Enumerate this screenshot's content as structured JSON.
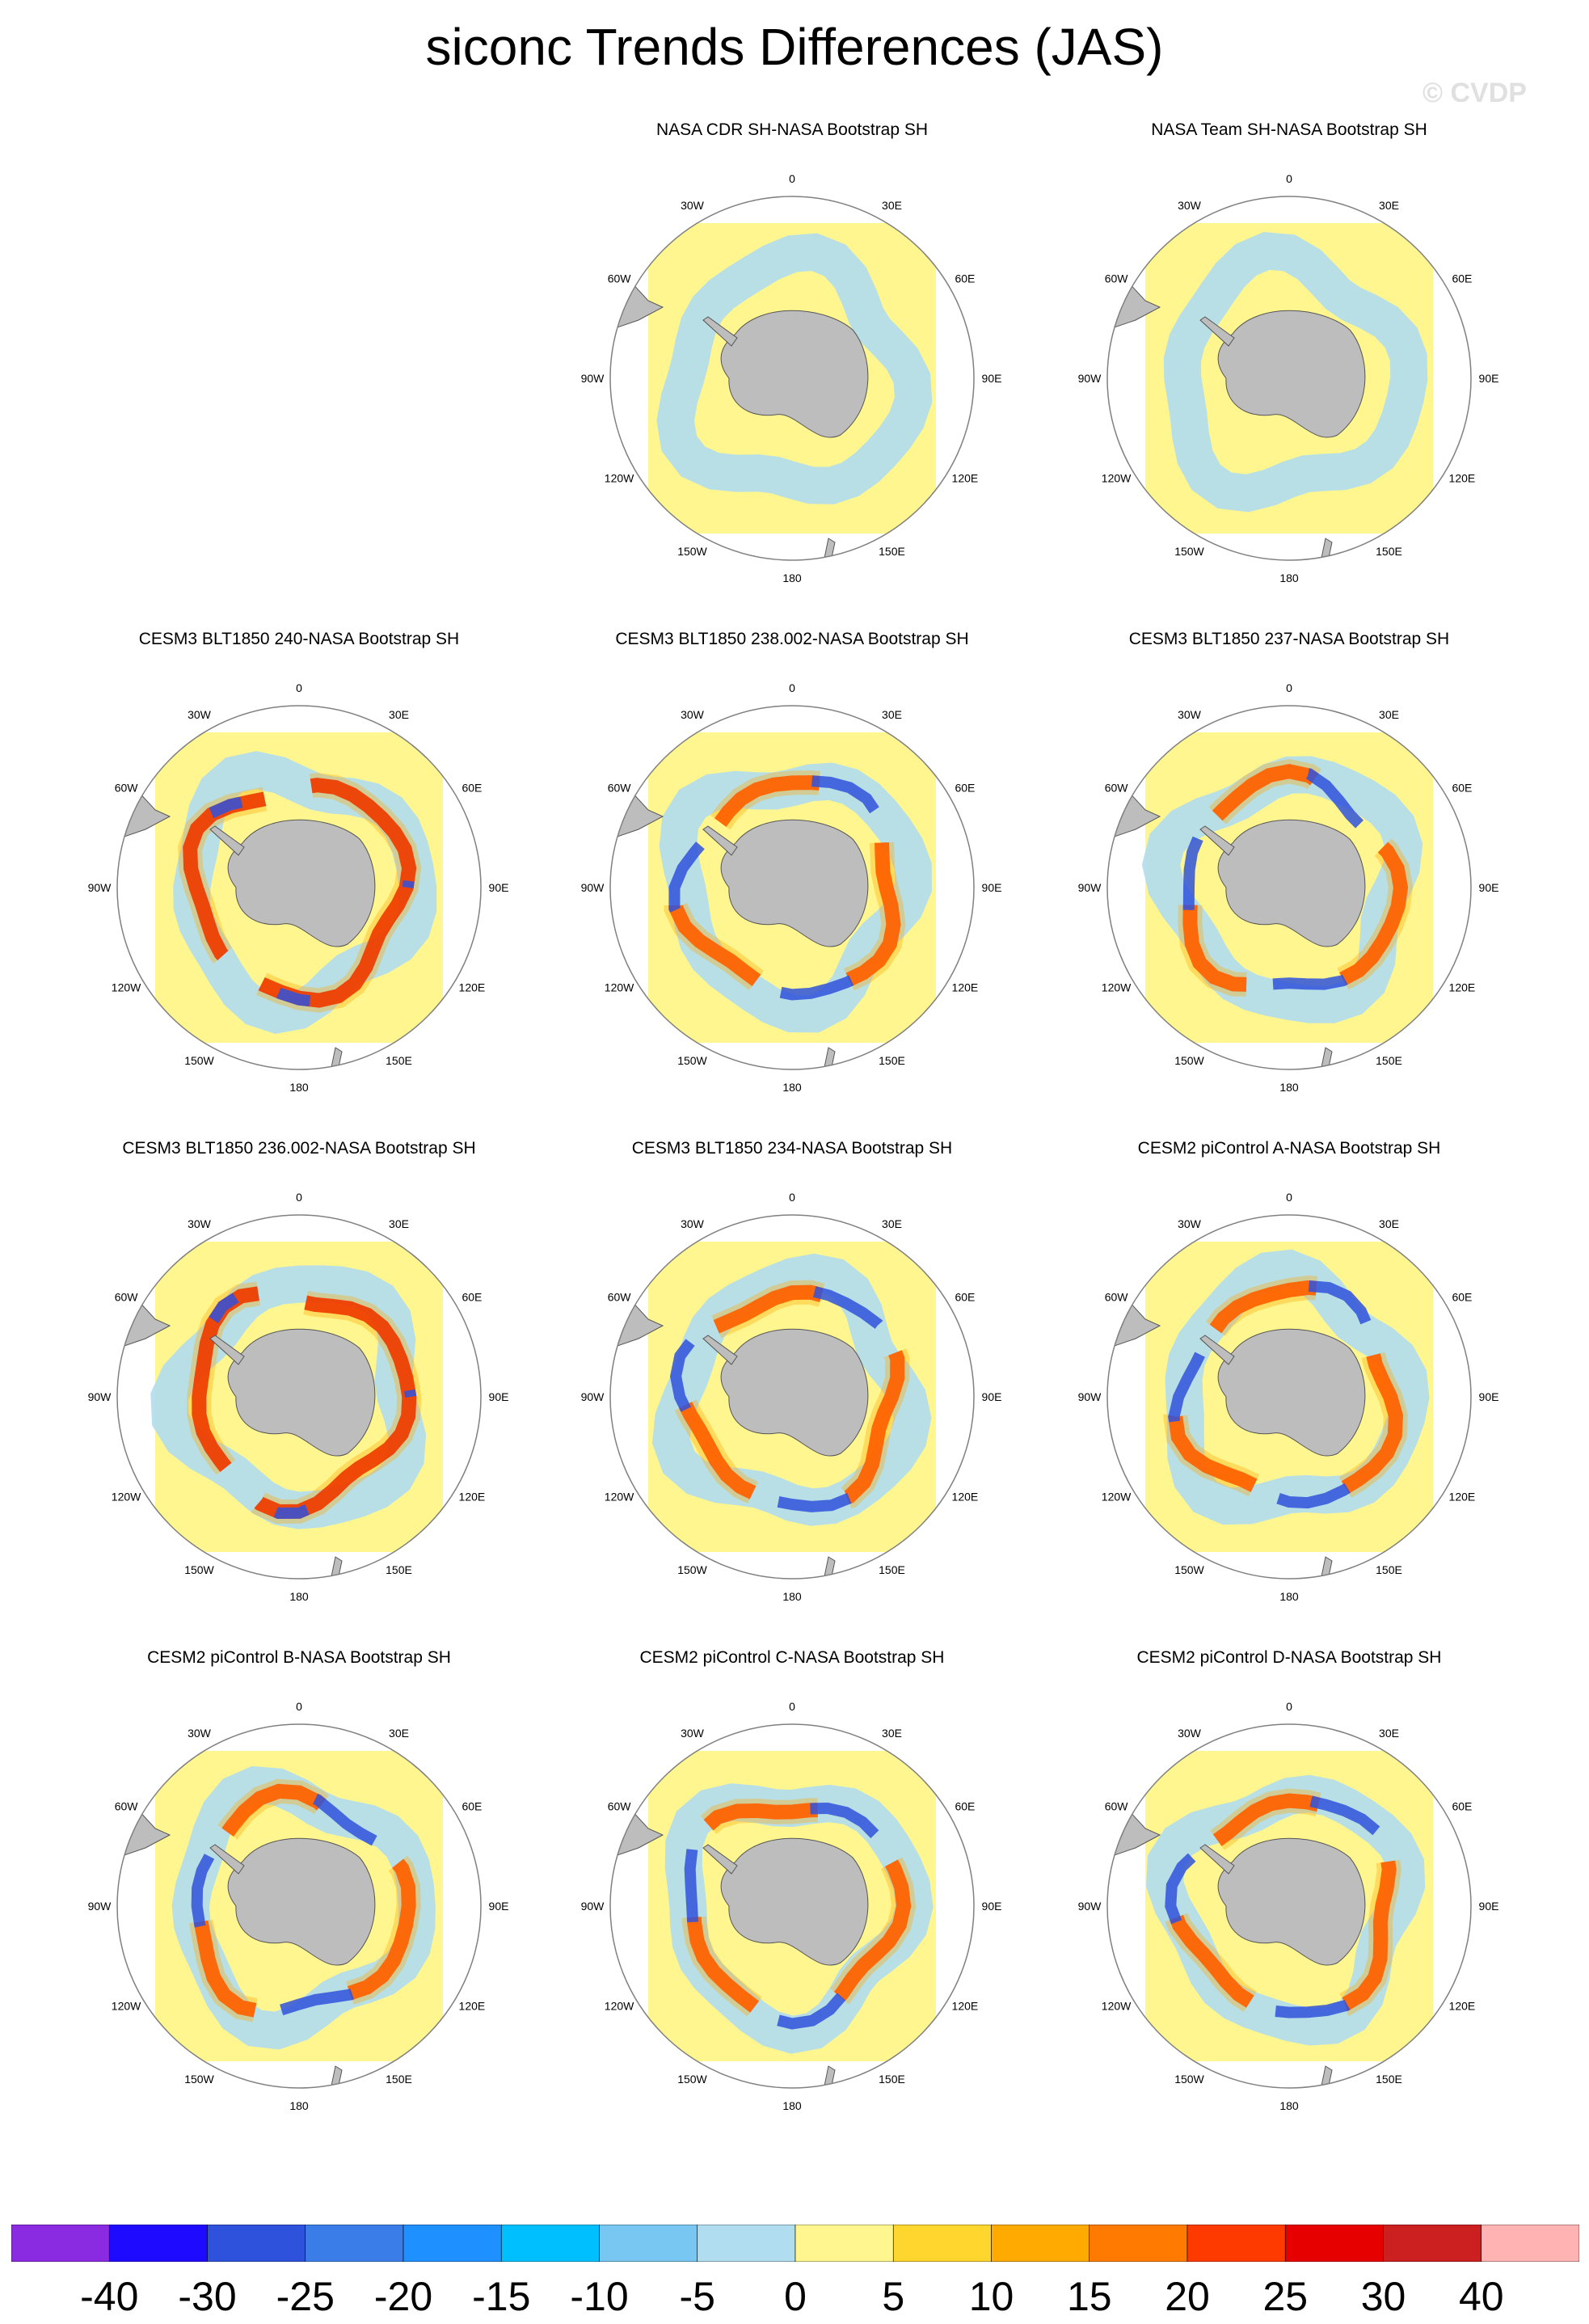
{
  "title": "siconc Trends Differences (JAS)",
  "watermark": "© CVDP",
  "projection_labels": {
    "top": "0",
    "bottom": "180",
    "left": "90W",
    "right": "90E",
    "ul30": "30W",
    "ur30": "30E",
    "ul60": "60W",
    "ur60": "60E",
    "ll120": "120W",
    "lr120": "120E",
    "ll150": "150W",
    "lr150": "150E"
  },
  "panels": [
    {
      "title": "NASA CDR SH-NASA Bootstrap SH",
      "row": 0,
      "col": 1,
      "variant": "small"
    },
    {
      "title": "NASA Team SH-NASA Bootstrap SH",
      "row": 0,
      "col": 2,
      "variant": "small"
    },
    {
      "title": "CESM3 BLT1850 240-NASA Bootstrap SH",
      "row": 1,
      "col": 0,
      "variant": "red"
    },
    {
      "title": "CESM3 BLT1850 238.002-NASA Bootstrap SH",
      "row": 1,
      "col": 1,
      "variant": "mixed"
    },
    {
      "title": "CESM3 BLT1850 237-NASA Bootstrap SH",
      "row": 1,
      "col": 2,
      "variant": "mixed"
    },
    {
      "title": "CESM3 BLT1850 236.002-NASA Bootstrap SH",
      "row": 2,
      "col": 0,
      "variant": "red"
    },
    {
      "title": "CESM3 BLT1850 234-NASA Bootstrap SH",
      "row": 2,
      "col": 1,
      "variant": "mixed"
    },
    {
      "title": "CESM2 piControl A-NASA Bootstrap SH",
      "row": 2,
      "col": 2,
      "variant": "mixed"
    },
    {
      "title": "CESM2 piControl B-NASA Bootstrap SH",
      "row": 3,
      "col": 0,
      "variant": "mixed"
    },
    {
      "title": "CESM2 piControl C-NASA Bootstrap SH",
      "row": 3,
      "col": 1,
      "variant": "mixed"
    },
    {
      "title": "CESM2 piControl D-NASA Bootstrap SH",
      "row": 3,
      "col": 2,
      "variant": "mixed"
    }
  ],
  "colorbar": {
    "colors": [
      "#8a2be2",
      "#1e0aff",
      "#2f52dc",
      "#3a7de8",
      "#1e90ff",
      "#00bfff",
      "#77c7f2",
      "#b0ddf0",
      "#fff68f",
      "#ffd62e",
      "#ffaa00",
      "#ff7a00",
      "#ff3a00",
      "#e60000",
      "#cc1f1f",
      "#ffb3b3"
    ],
    "labels": [
      "-40",
      "-30",
      "-25",
      "-20",
      "-15",
      "-10",
      "-5",
      "0",
      "5",
      "10",
      "15",
      "20",
      "25",
      "30",
      "40"
    ]
  },
  "colors": {
    "land": "#bdbdbd",
    "background_field": "#fff68f",
    "circle": "#808080"
  }
}
